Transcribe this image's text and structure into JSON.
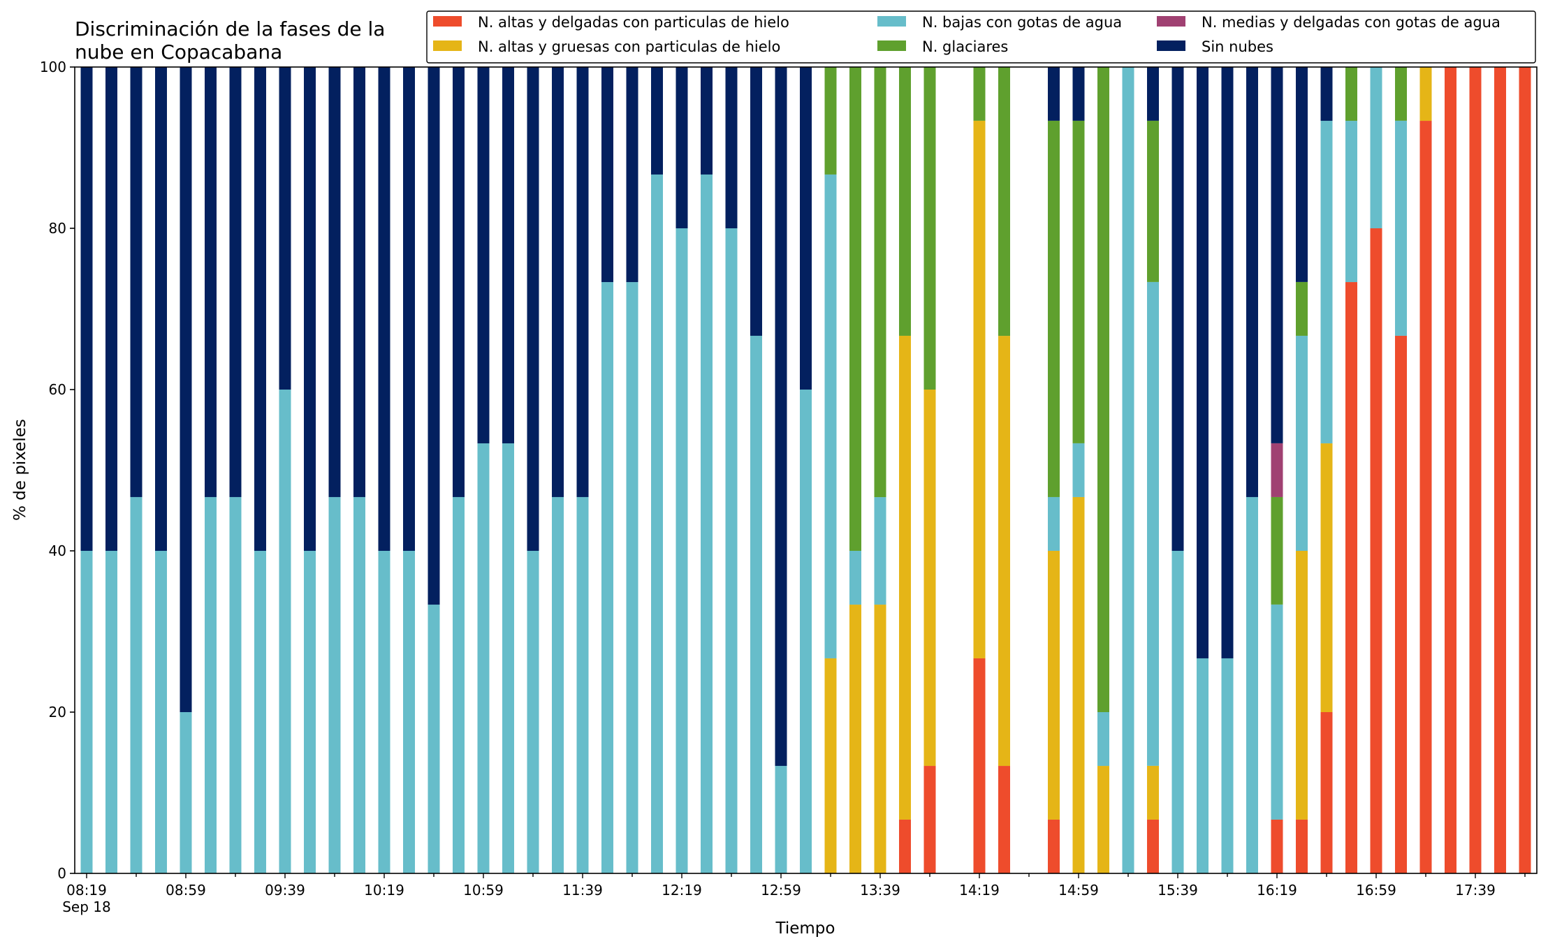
{
  "chart_data": {
    "type": "bar",
    "stacked": true,
    "title_lines": [
      "Discriminación de la fases de la",
      "nube en Copacabana"
    ],
    "xlabel": "Tiempo",
    "ylabel": "% de pixeles",
    "ylim": [
      0,
      100
    ],
    "yticks": [
      "0",
      "20",
      "40",
      "60",
      "80",
      "100"
    ],
    "x_start": "08:19",
    "x_step_minutes": 10,
    "xtick_labels": [
      "08:19",
      "08:59",
      "09:39",
      "10:19",
      "10:59",
      "11:39",
      "12:19",
      "12:59",
      "13:39",
      "14:19",
      "14:59",
      "15:39",
      "16:19",
      "16:59",
      "17:39"
    ],
    "xtick_label_indices": [
      0,
      4,
      8,
      12,
      16,
      20,
      24,
      28,
      32,
      36,
      40,
      44,
      48,
      52,
      56
    ],
    "date_label": "Sep 18",
    "legend_position": "top-right",
    "legend_columns": 3,
    "series": [
      {
        "name": "N. altas y delgadas con particulas de hielo",
        "color": "#EE4C2C",
        "values": [
          0,
          0,
          0,
          0,
          0,
          0,
          0,
          0,
          0,
          0,
          0,
          0,
          0,
          0,
          0,
          0,
          0,
          0,
          0,
          0,
          0,
          0,
          0,
          0,
          0,
          0,
          0,
          0,
          0,
          0,
          0,
          0,
          0,
          6.67,
          13.33,
          0,
          26.67,
          13.33,
          0,
          6.67,
          0,
          0,
          0,
          6.67,
          0,
          0,
          0,
          0,
          6.67,
          6.67,
          20,
          73.33,
          80,
          66.67,
          93.33,
          100,
          100,
          100,
          100
        ]
      },
      {
        "name": "N. altas y gruesas con particulas de hielo",
        "color": "#E5B517",
        "values": [
          0,
          0,
          0,
          0,
          0,
          0,
          0,
          0,
          0,
          0,
          0,
          0,
          0,
          0,
          0,
          0,
          0,
          0,
          0,
          0,
          0,
          0,
          0,
          0,
          0,
          0,
          0,
          0,
          0,
          0,
          26.67,
          33.33,
          33.33,
          60,
          46.67,
          0,
          66.67,
          53.33,
          0,
          33.33,
          46.67,
          13.33,
          0,
          6.67,
          0,
          0,
          0,
          0,
          0,
          33.33,
          33.33,
          0,
          0,
          0,
          6.67,
          0,
          0,
          0,
          0
        ]
      },
      {
        "name": "N. bajas con gotas de agua",
        "color": "#67BDCA",
        "values": [
          40,
          40,
          46.67,
          40,
          20,
          46.67,
          46.67,
          40,
          60,
          40,
          46.67,
          46.67,
          40,
          40,
          33.33,
          46.67,
          53.33,
          53.33,
          40,
          46.67,
          46.67,
          73.33,
          73.33,
          86.67,
          80,
          86.67,
          80,
          66.67,
          13.33,
          60,
          60,
          6.67,
          13.33,
          0,
          0,
          0,
          0,
          0,
          0,
          6.67,
          6.67,
          6.67,
          100,
          60,
          40,
          26.67,
          26.67,
          46.67,
          26.67,
          26.67,
          40,
          20,
          20,
          26.67,
          0,
          0,
          0,
          0,
          0
        ]
      },
      {
        "name": "N. glaciares",
        "color": "#5FA02E",
        "values": [
          0,
          0,
          0,
          0,
          0,
          0,
          0,
          0,
          0,
          0,
          0,
          0,
          0,
          0,
          0,
          0,
          0,
          0,
          0,
          0,
          0,
          0,
          0,
          0,
          0,
          0,
          0,
          0,
          0,
          0,
          13.33,
          60,
          53.33,
          33.33,
          40,
          0,
          6.67,
          33.33,
          0,
          46.67,
          40,
          80,
          0,
          20,
          0,
          0,
          0,
          0,
          13.33,
          6.67,
          0,
          6.67,
          0,
          6.67,
          0,
          0,
          0,
          0,
          0
        ]
      },
      {
        "name": "N. medias y delgadas con gotas de agua",
        "color": "#A04172",
        "values": [
          0,
          0,
          0,
          0,
          0,
          0,
          0,
          0,
          0,
          0,
          0,
          0,
          0,
          0,
          0,
          0,
          0,
          0,
          0,
          0,
          0,
          0,
          0,
          0,
          0,
          0,
          0,
          0,
          0,
          0,
          0,
          0,
          0,
          0,
          0,
          0,
          0,
          0,
          0,
          0,
          0,
          0,
          0,
          0,
          0,
          0,
          0,
          0,
          6.67,
          0,
          0,
          0,
          0,
          0,
          0,
          0,
          0,
          0,
          0
        ]
      },
      {
        "name": "Sin nubes",
        "color": "#03205F",
        "values": [
          60,
          60,
          53.33,
          60,
          80,
          53.33,
          53.33,
          60,
          40,
          60,
          53.33,
          53.33,
          60,
          60,
          66.67,
          53.33,
          46.67,
          46.67,
          60,
          53.33,
          53.33,
          26.67,
          26.67,
          13.33,
          20,
          13.33,
          20,
          33.33,
          86.67,
          40,
          0,
          0,
          0,
          0,
          0,
          0,
          0,
          0,
          0,
          6.67,
          6.67,
          0,
          0,
          6.67,
          60,
          73.33,
          73.33,
          53.33,
          46.67,
          26.67,
          6.67,
          0,
          0,
          0,
          0,
          0,
          0,
          0,
          0
        ]
      }
    ]
  }
}
